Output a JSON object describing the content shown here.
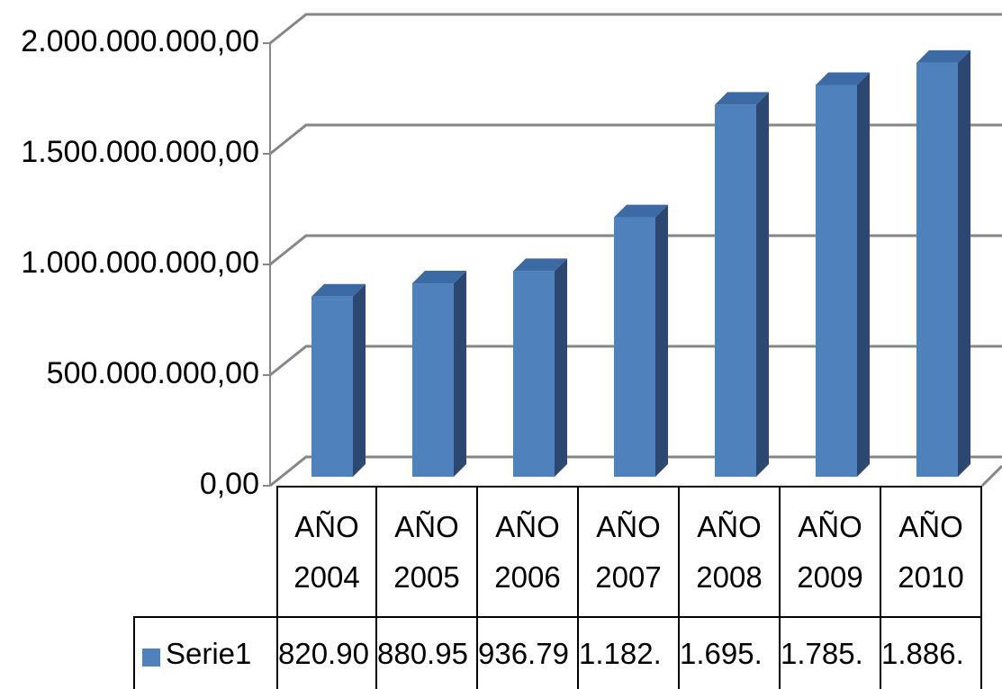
{
  "chart_data": {
    "type": "bar",
    "categories": [
      "AÑO 2004",
      "AÑO 2005",
      "AÑO 2006",
      "AÑO 2007",
      "AÑO 2008",
      "AÑO 2009",
      "AÑO 2010"
    ],
    "series": [
      {
        "name": "Serie1",
        "color": "#4f81bd",
        "values": [
          820900000,
          880950000,
          936790000,
          1182000000,
          1695000000,
          1785000000,
          1886000000
        ],
        "value_labels": [
          "820.90",
          "880.95",
          "936.79",
          "1.182.",
          "1.695.",
          "1.785.",
          "1.886."
        ]
      }
    ],
    "ylim": [
      0,
      2000000000
    ],
    "yticks": [
      {
        "value": 0,
        "label": "0,00"
      },
      {
        "value": 500000000,
        "label": "500.000.000,00"
      },
      {
        "value": 1000000000,
        "label": "1.000.000.000,00"
      },
      {
        "value": 1500000000,
        "label": "1.500.000.000,00"
      },
      {
        "value": 2000000000,
        "label": "2.000.000.000,00"
      }
    ],
    "grid": true
  }
}
